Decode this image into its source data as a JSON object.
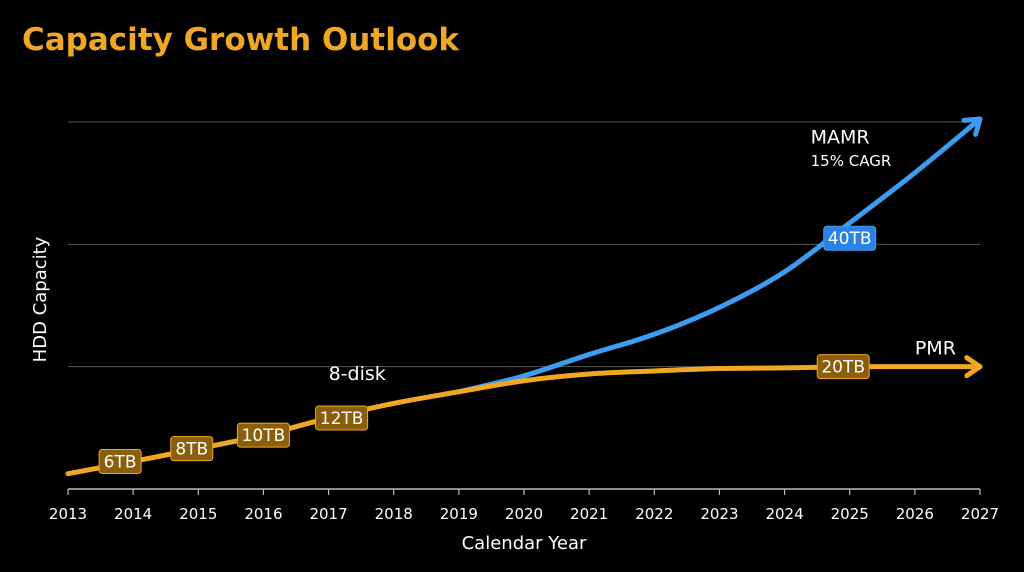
{
  "slide": {
    "title": "Capacity Growth Outlook"
  },
  "colors": {
    "pmr": "#F0A824",
    "mamr": "#3D9BF0",
    "pmr_tag": "#8A5E0A",
    "mamr_tag": "#2A82E4"
  },
  "chart_data": {
    "type": "line",
    "title": "Capacity Growth Outlook",
    "xlabel": "Calendar Year",
    "ylabel": "HDD Capacity",
    "xlim": [
      2013,
      2027
    ],
    "ylim": [
      0,
      60
    ],
    "y_tick_labels_shown": false,
    "gridlines": [
      20,
      40,
      60
    ],
    "categories": [
      "2013",
      "2014",
      "2015",
      "2016",
      "2017",
      "2018",
      "2019",
      "2020",
      "2021",
      "2022",
      "2023",
      "2024",
      "2025",
      "2026",
      "2027"
    ],
    "series": [
      {
        "name": "PMR",
        "x": [
          2013,
          2014,
          2015,
          2016,
          2017,
          2018,
          2019,
          2020,
          2021,
          2022,
          2023,
          2024,
          2025,
          2026,
          2027
        ],
        "y": [
          2.5,
          4.5,
          6.6,
          8.8,
          11.6,
          14.0,
          15.9,
          17.7,
          18.8,
          19.3,
          19.7,
          19.8,
          20.0,
          20.0,
          20.0
        ],
        "markers": [
          {
            "x": 2013.8,
            "y": 4.5,
            "label": "6TB"
          },
          {
            "x": 2014.9,
            "y": 6.6,
            "label": "8TB"
          },
          {
            "x": 2016.0,
            "y": 8.8,
            "label": "10TB"
          },
          {
            "x": 2017.2,
            "y": 11.6,
            "label": "12TB"
          },
          {
            "x": 2024.9,
            "y": 20.0,
            "label": "20TB"
          }
        ]
      },
      {
        "name": "MAMR",
        "x": [
          2019,
          2020,
          2021,
          2022,
          2023,
          2024,
          2025,
          2026,
          2027
        ],
        "y": [
          15.9,
          18.5,
          22.0,
          25.3,
          29.7,
          35.5,
          43.5,
          51.7,
          60.5
        ],
        "markers": [
          {
            "x": 2025.0,
            "y": 41.0,
            "label": "40TB"
          }
        ]
      }
    ],
    "annotations": [
      {
        "text": "MAMR",
        "x": 2024.4,
        "y": 56.5
      },
      {
        "text": "15% CAGR",
        "x": 2024.4,
        "y": 52.8
      },
      {
        "text": "PMR",
        "x": 2026.0,
        "y": 22.0
      },
      {
        "text": "8-disk",
        "x": 2017.0,
        "y": 17.8
      }
    ]
  }
}
